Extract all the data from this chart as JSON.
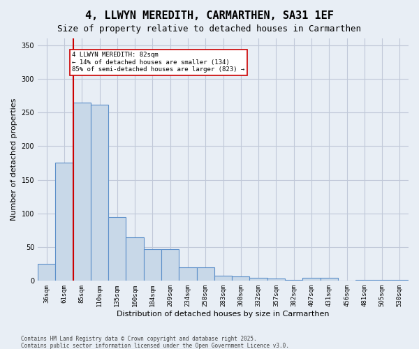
{
  "title": "4, LLWYN MEREDITH, CARMARTHEN, SA31 1EF",
  "subtitle": "Size of property relative to detached houses in Carmarthen",
  "xlabel": "Distribution of detached houses by size in Carmarthen",
  "ylabel": "Number of detached properties",
  "categories": [
    "36sqm",
    "61sqm",
    "85sqm",
    "110sqm",
    "135sqm",
    "160sqm",
    "184sqm",
    "209sqm",
    "234sqm",
    "258sqm",
    "283sqm",
    "308sqm",
    "332sqm",
    "357sqm",
    "382sqm",
    "407sqm",
    "431sqm",
    "456sqm",
    "481sqm",
    "505sqm",
    "530sqm"
  ],
  "values": [
    25,
    175,
    265,
    262,
    95,
    65,
    47,
    47,
    20,
    20,
    8,
    7,
    5,
    3,
    1,
    4,
    4,
    0,
    1,
    1,
    1
  ],
  "bar_color": "#c8d8e8",
  "bar_edge_color": "#5b8fc9",
  "vline_x": 1.5,
  "vline_color": "#cc0000",
  "annotation_title": "4 LLWYN MEREDITH: 82sqm",
  "annotation_line1": "← 14% of detached houses are smaller (134)",
  "annotation_line2": "85% of semi-detached houses are larger (823) →",
  "annotation_box_color": "#ffffff",
  "annotation_box_edge": "#cc0000",
  "ylim": [
    0,
    360
  ],
  "yticks": [
    0,
    50,
    100,
    150,
    200,
    250,
    300,
    350
  ],
  "grid_color": "#c0c8d8",
  "background_color": "#e8eef5",
  "footer1": "Contains HM Land Registry data © Crown copyright and database right 2025.",
  "footer2": "Contains public sector information licensed under the Open Government Licence v3.0.",
  "title_fontsize": 11,
  "subtitle_fontsize": 9,
  "tick_fontsize": 6.5,
  "ylabel_fontsize": 8,
  "xlabel_fontsize": 8
}
